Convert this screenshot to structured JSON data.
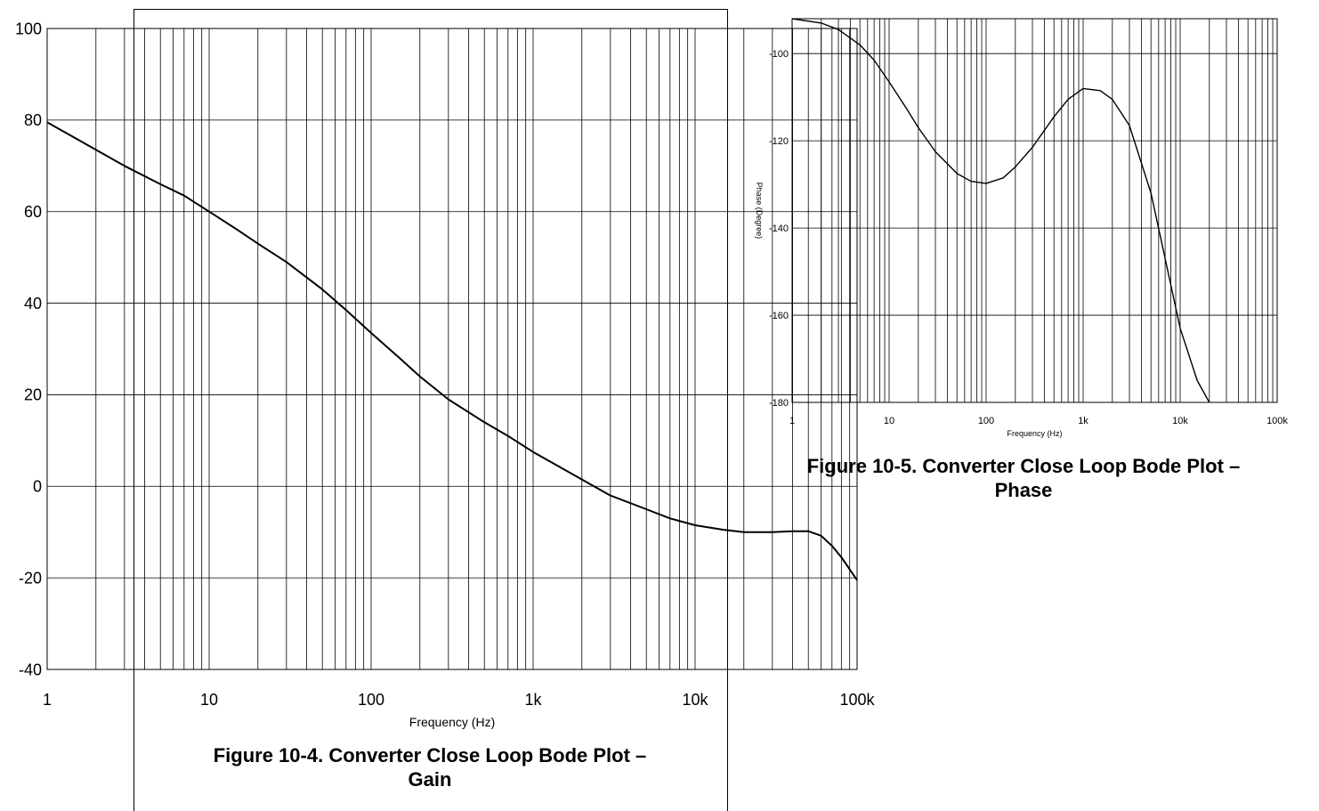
{
  "charts": {
    "chart_data": [
      {
        "type": "line",
        "title": "Figure 10-4. Converter Close Loop Bode Plot – Gain",
        "title_lines": [
          "Figure 10-4. Converter Close Loop Bode Plot –",
          "Gain"
        ],
        "xlabel": "Frequency (Hz)",
        "ylabel": "",
        "x_scale": "log",
        "xlim": [
          1,
          100000
        ],
        "ylim": [
          -40,
          100
        ],
        "grid": true,
        "x_ticks": [
          1,
          10,
          100,
          1000,
          10000,
          100000
        ],
        "x_tick_labels": [
          "1",
          "10",
          "100",
          "1k",
          "10k",
          "100k"
        ],
        "y_ticks": [
          100,
          80,
          60,
          40,
          20,
          0,
          -20,
          -40
        ],
        "y_tick_labels": [
          "100",
          "80",
          "60",
          "40",
          "20",
          "0",
          "-20",
          "-40"
        ],
        "series": [
          {
            "x": [
              1,
              1.5,
              2,
              3,
              5,
              7,
              10,
              15,
              20,
              30,
              50,
              70,
              100,
              150,
              200,
              300,
              500,
              700,
              1000,
              1500,
              2000,
              3000,
              5000,
              7000,
              10000,
              15000,
              20000,
              30000,
              40000,
              50000,
              60000,
              70000,
              80000,
              100000
            ],
            "y": [
              79.5,
              76,
              73.5,
              70,
              66,
              63.5,
              60,
              56,
              53,
              49,
              43,
              38.5,
              33.5,
              28,
              24,
              19,
              14,
              11,
              7.5,
              4,
              1.5,
              -2,
              -5,
              -7,
              -8.5,
              -9.5,
              -10,
              -10,
              -9.8,
              -9.8,
              -10.8,
              -13,
              -15.5,
              -20.5
            ]
          }
        ]
      },
      {
        "type": "line",
        "title": "Figure 10-5. Converter Close Loop Bode Plot – Phase",
        "title_lines": [
          "Figure 10-5. Converter Close Loop Bode Plot –",
          "Phase"
        ],
        "xlabel": "Frequency (Hz)",
        "ylabel": "Phase (Degree)",
        "x_scale": "log",
        "xlim": [
          1,
          100000
        ],
        "ylim": [
          -180,
          -92
        ],
        "grid": true,
        "x_ticks": [
          1,
          10,
          100,
          1000,
          10000,
          100000
        ],
        "x_tick_labels": [
          "1",
          "10",
          "100",
          "1k",
          "10k",
          "100k"
        ],
        "y_ticks": [
          -100,
          -120,
          -140,
          -160,
          -180
        ],
        "y_tick_labels": [
          "-100",
          "-120",
          "-140",
          "-160",
          "-180"
        ],
        "series": [
          {
            "x": [
              1,
              2,
              3,
              5,
              7,
              10,
              15,
              20,
              30,
              50,
              70,
              100,
              150,
              200,
              300,
              500,
              700,
              1000,
              1500,
              2000,
              3000,
              5000,
              7000,
              10000,
              15000,
              20000
            ],
            "y": [
              -92,
              -93,
              -94.5,
              -98,
              -101.5,
              -106.5,
              -112.5,
              -117,
              -122.5,
              -127.5,
              -129.3,
              -129.8,
              -128.5,
              -126,
              -121.5,
              -114.5,
              -110.5,
              -108,
              -108.5,
              -110.5,
              -116.5,
              -132,
              -147,
              -163,
              -175,
              -180
            ]
          }
        ]
      }
    ]
  }
}
